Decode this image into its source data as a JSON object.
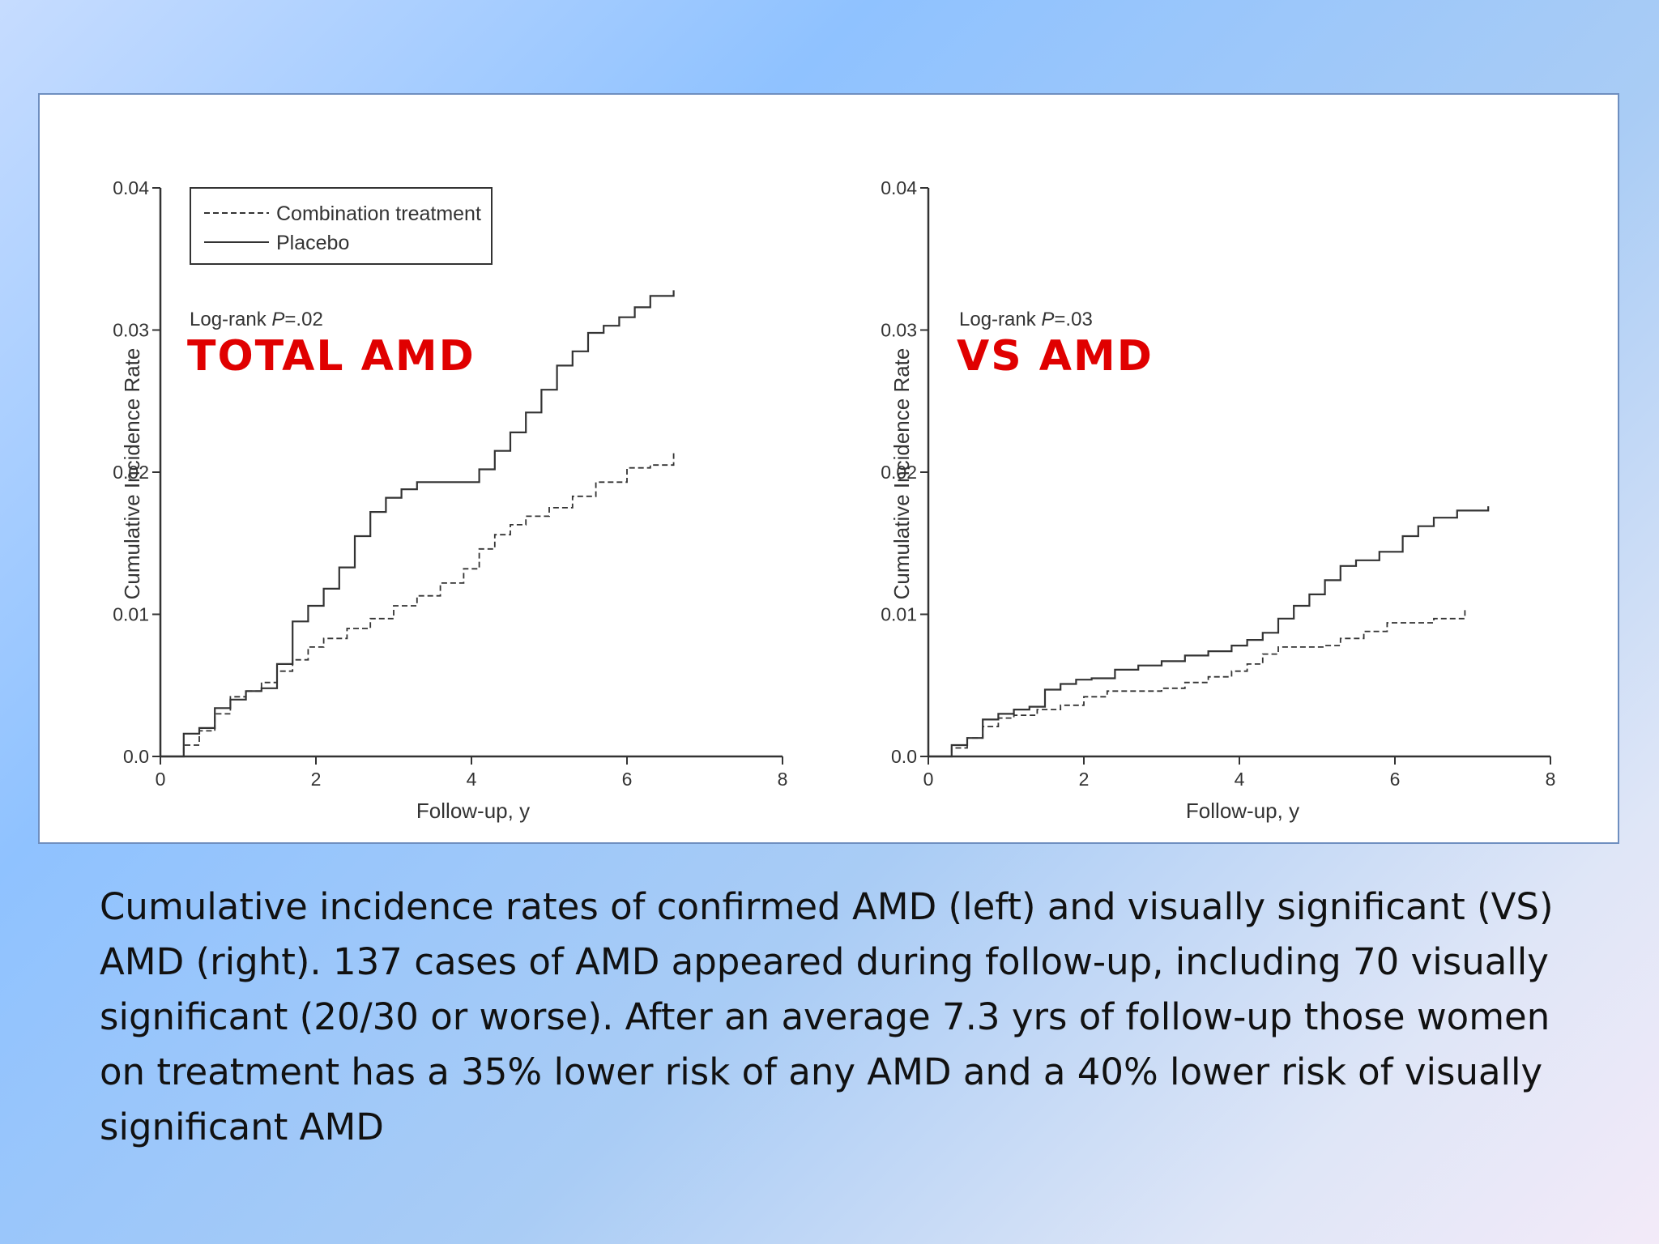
{
  "chart_data": [
    {
      "type": "line",
      "annotation_label": "TOTAL AMD",
      "pvalue_prefix": "Log-rank ",
      "pvalue_p": "P",
      "pvalue_rest": "=.02",
      "xlabel": "Follow-up, y",
      "ylabel": "Cumulative Incidence Rate",
      "xlim": [
        0,
        8
      ],
      "ylim": [
        0,
        0.04
      ],
      "xticks": [
        "0",
        "2",
        "4",
        "6",
        "8"
      ],
      "yticks": [
        "0.0",
        "0.01",
        "0.02",
        "0.03",
        "0.04"
      ],
      "grid": false,
      "legend": {
        "position": "top-left",
        "entries": [
          {
            "label": "Combination treatment",
            "style": "dashed"
          },
          {
            "label": "Placebo",
            "style": "solid"
          }
        ]
      },
      "series": [
        {
          "name": "Combination treatment",
          "style": "dashed",
          "color": "#333333",
          "x": [
            0,
            0.3,
            0.5,
            0.7,
            0.9,
            1.1,
            1.3,
            1.5,
            1.7,
            1.9,
            2.1,
            2.4,
            2.7,
            3.0,
            3.3,
            3.6,
            3.9,
            4.1,
            4.3,
            4.5,
            4.7,
            5.0,
            5.3,
            5.6,
            5.8,
            6.0,
            6.3,
            6.6
          ],
          "y": [
            0,
            0.0008,
            0.0018,
            0.003,
            0.0042,
            0.0046,
            0.0052,
            0.006,
            0.0068,
            0.0077,
            0.0083,
            0.009,
            0.0097,
            0.0106,
            0.0113,
            0.0122,
            0.0132,
            0.0146,
            0.0156,
            0.0163,
            0.0169,
            0.0175,
            0.0183,
            0.0193,
            0.0193,
            0.0203,
            0.0205,
            0.0215
          ]
        },
        {
          "name": "Placebo",
          "style": "solid",
          "color": "#333333",
          "x": [
            0,
            0.3,
            0.5,
            0.7,
            0.9,
            1.1,
            1.3,
            1.5,
            1.7,
            1.9,
            2.1,
            2.3,
            2.5,
            2.7,
            2.9,
            3.1,
            3.3,
            3.7,
            4.1,
            4.3,
            4.5,
            4.7,
            4.9,
            5.1,
            5.3,
            5.5,
            5.7,
            5.9,
            6.1,
            6.3,
            6.6
          ],
          "y": [
            0,
            0.0016,
            0.002,
            0.0034,
            0.004,
            0.0046,
            0.0048,
            0.0065,
            0.0095,
            0.0106,
            0.0118,
            0.0133,
            0.0155,
            0.0172,
            0.0182,
            0.0188,
            0.0193,
            0.0193,
            0.0202,
            0.0215,
            0.0228,
            0.0242,
            0.0258,
            0.0275,
            0.0285,
            0.0298,
            0.0303,
            0.0309,
            0.0316,
            0.0324,
            0.0328
          ]
        }
      ]
    },
    {
      "type": "line",
      "annotation_label": "VS AMD",
      "pvalue_prefix": "Log-rank ",
      "pvalue_p": "P",
      "pvalue_rest": "=.03",
      "xlabel": "Follow-up, y",
      "ylabel": "Cumulative Incidence Rate",
      "xlim": [
        0,
        8
      ],
      "ylim": [
        0,
        0.04
      ],
      "xticks": [
        "0",
        "2",
        "4",
        "6",
        "8"
      ],
      "yticks": [
        "0.0",
        "0.01",
        "0.02",
        "0.03",
        "0.04"
      ],
      "grid": false,
      "series": [
        {
          "name": "Combination treatment",
          "style": "dashed",
          "color": "#333333",
          "x": [
            0,
            0.3,
            0.5,
            0.7,
            0.9,
            1.1,
            1.4,
            1.7,
            2.0,
            2.3,
            2.6,
            3.0,
            3.3,
            3.6,
            3.9,
            4.1,
            4.3,
            4.5,
            4.8,
            5.1,
            5.3,
            5.6,
            5.9,
            6.2,
            6.5,
            6.9
          ],
          "y": [
            0,
            0.0006,
            0.0013,
            0.0021,
            0.0027,
            0.0029,
            0.0033,
            0.0036,
            0.0042,
            0.0046,
            0.0046,
            0.0048,
            0.0052,
            0.0056,
            0.006,
            0.0065,
            0.0072,
            0.0077,
            0.0077,
            0.0078,
            0.0083,
            0.0088,
            0.0094,
            0.0094,
            0.0097,
            0.0104
          ]
        },
        {
          "name": "Placebo",
          "style": "solid",
          "color": "#333333",
          "x": [
            0,
            0.3,
            0.5,
            0.7,
            0.9,
            1.1,
            1.3,
            1.5,
            1.7,
            1.9,
            2.1,
            2.4,
            2.7,
            3.0,
            3.3,
            3.6,
            3.9,
            4.1,
            4.3,
            4.5,
            4.7,
            4.9,
            5.1,
            5.3,
            5.5,
            5.8,
            6.1,
            6.3,
            6.5,
            6.8,
            7.2
          ],
          "y": [
            0,
            0.0008,
            0.0013,
            0.0026,
            0.003,
            0.0033,
            0.0035,
            0.0047,
            0.0051,
            0.0054,
            0.0055,
            0.0061,
            0.0064,
            0.0067,
            0.0071,
            0.0074,
            0.0078,
            0.0082,
            0.0087,
            0.0097,
            0.0106,
            0.0114,
            0.0124,
            0.0134,
            0.0138,
            0.0144,
            0.0155,
            0.0162,
            0.0168,
            0.0173,
            0.0176
          ]
        }
      ]
    }
  ],
  "caption": "Cumulative incidence rates of confirmed AMD (left) and visually significant (VS) AMD (right). 137 cases of AMD appeared during follow-up, including 70 visually significant (20/30 or worse). After an average 7.3 yrs of follow-up those women on treatment has a 35% lower risk of any AMD and a 40% lower risk of visually significant AMD"
}
